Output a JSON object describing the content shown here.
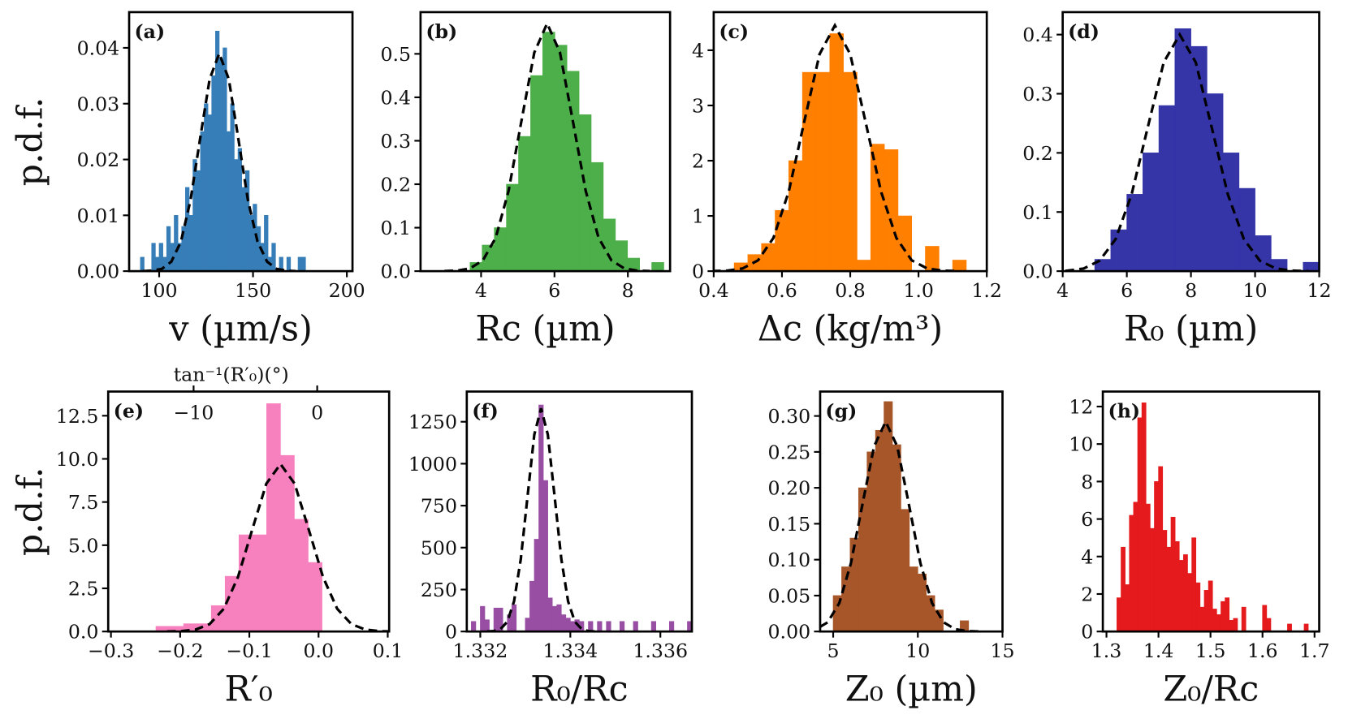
{
  "chart_data": [
    {
      "type": "histogram",
      "panel_label": "(a)",
      "xlabel": "v (µm/s)",
      "ylabel": "p.d.f.",
      "color": "#377eb8",
      "bins": [
        90,
        92,
        94,
        96,
        98,
        100,
        102,
        104,
        106,
        108,
        110,
        112,
        114,
        116,
        118,
        120,
        122,
        124,
        126,
        128,
        130,
        132,
        134,
        136,
        138,
        140,
        142,
        144,
        146,
        148,
        150,
        152,
        154,
        156,
        158,
        160,
        162,
        164,
        166,
        168,
        170,
        172,
        174,
        176,
        178,
        180
      ],
      "values": [
        0.0025,
        0,
        0,
        0.005,
        0.0025,
        0.005,
        0.0025,
        0.008,
        0.005,
        0.01,
        0.005,
        0.008,
        0.015,
        0.01,
        0.02,
        0.018,
        0.025,
        0.03,
        0.028,
        0.035,
        0.043,
        0.038,
        0.04,
        0.025,
        0.03,
        0.02,
        0.022,
        0.015,
        0.018,
        0.01,
        0.012,
        0.008,
        0.005,
        0.01,
        0.0025,
        0.005,
        0,
        0.0025,
        0,
        0.0025,
        0,
        0,
        0.0025,
        0.0025,
        0
      ],
      "fit": {
        "x": [
          91.2,
          96.3,
          101.4,
          106.5,
          111.6,
          116.7,
          121.8,
          126.9,
          132,
          137.1,
          142.2,
          147.3,
          152.4,
          157.5,
          162.6,
          167.7,
          172.8
        ],
        "values": [
          0,
          0.0001,
          0.0004,
          0.0017,
          0.0053,
          0.0127,
          0.0237,
          0.0344,
          0.039,
          0.0344,
          0.0237,
          0.0127,
          0.0053,
          0.0017,
          0.0004,
          0.0001,
          0
        ]
      },
      "xlim": [
        84,
        203
      ],
      "ylim": [
        0,
        0.0464
      ],
      "xticks": [
        100,
        150,
        200
      ],
      "yticks": [
        {
          "value": 0,
          "label": "0.00"
        },
        0.01,
        0.02,
        0.03,
        0.04
      ]
    },
    {
      "type": "histogram",
      "panel_label": "(b)",
      "xlabel": "Rc (µm)",
      "color": "#4daf4a",
      "bins": [
        3.7,
        4.03,
        4.36,
        4.69,
        5.02,
        5.35,
        5.68,
        6.01,
        6.34,
        6.67,
        7.0,
        7.33,
        7.66,
        7.99,
        8.32,
        8.65,
        8.98
      ],
      "values": [
        0.02,
        0.06,
        0.1,
        0.2,
        0.31,
        0.45,
        0.55,
        0.52,
        0.46,
        0.36,
        0.25,
        0.12,
        0.07,
        0.03,
        0,
        0.02
      ],
      "fit": {
        "x": [
          3.0,
          3.35,
          3.7,
          4.05,
          4.4,
          4.75,
          5.1,
          5.45,
          5.8,
          6.15,
          6.5,
          6.85,
          7.2,
          7.55,
          7.9,
          8.25,
          8.6
        ],
        "values": [
          0.0002,
          0.0013,
          0.0063,
          0.025,
          0.0771,
          0.1851,
          0.3457,
          0.503,
          0.57,
          0.503,
          0.3457,
          0.1851,
          0.0771,
          0.025,
          0.0063,
          0.0013,
          0.0002
        ]
      },
      "xlim": [
        2.35,
        9.15
      ],
      "ylim": [
        0,
        0.596
      ],
      "xticks": [
        4,
        6,
        8
      ],
      "yticks": [
        {
          "value": 0,
          "label": "0.0"
        },
        0.1,
        0.2,
        0.3,
        0.4,
        0.5
      ]
    },
    {
      "type": "histogram",
      "panel_label": "(c)",
      "xlabel": "Δc (kg/m³)",
      "color": "#ff7f00",
      "bins": [
        0.46,
        0.5,
        0.54,
        0.58,
        0.62,
        0.66,
        0.7,
        0.74,
        0.78,
        0.82,
        0.86,
        0.9,
        0.94,
        0.98,
        1.02,
        1.06,
        1.1,
        1.14
      ],
      "values": [
        0.15,
        0.3,
        0.5,
        1.1,
        2.0,
        3.6,
        3.6,
        4.3,
        3.6,
        0.2,
        2.3,
        2.2,
        1.0,
        0,
        0.45,
        0,
        0.2
      ],
      "fit": {
        "x": [
          0.395,
          0.44,
          0.485,
          0.53,
          0.575,
          0.62,
          0.665,
          0.71,
          0.755,
          0.8,
          0.845,
          0.89,
          0.935,
          0.98,
          1.025,
          1.07,
          1.115
        ],
        "values": [
          0.0013,
          0.0098,
          0.0494,
          0.1954,
          0.6021,
          1.4449,
          2.6989,
          3.9271,
          4.45,
          3.9271,
          2.6989,
          1.4449,
          0.6021,
          0.1954,
          0.0494,
          0.0098,
          0.0013
        ]
      },
      "xlim": [
        0.4,
        1.2
      ],
      "ylim": [
        0,
        4.69
      ],
      "xticks": [
        0.4,
        0.6,
        0.8,
        {
          "value": 1,
          "label": "1.0"
        },
        1.2
      ],
      "yticks": [
        0,
        1,
        2,
        3,
        4
      ]
    },
    {
      "type": "histogram",
      "panel_label": "(d)",
      "xlabel": "R₀ (µm)",
      "color": "#3535a8",
      "bins": [
        5.0,
        5.5,
        6.0,
        6.5,
        7.0,
        7.5,
        8.0,
        8.5,
        9.0,
        9.5,
        10.0,
        10.5,
        11.0,
        11.5,
        12.0
      ],
      "values": [
        0.02,
        0.07,
        0.13,
        0.2,
        0.28,
        0.41,
        0.38,
        0.3,
        0.2,
        0.14,
        0.06,
        0.02,
        0,
        0.015
      ],
      "fit": {
        "x": [
          3.65,
          4.15,
          4.65,
          5.15,
          5.65,
          6.15,
          6.65,
          7.15,
          7.65,
          8.15,
          8.65,
          9.15,
          9.65,
          10.15,
          10.65,
          11.15,
          11.65
        ],
        "values": [
          0.0001,
          0.0009,
          0.0044,
          0.0176,
          0.0541,
          0.1299,
          0.2426,
          0.353,
          0.4,
          0.353,
          0.2426,
          0.1299,
          0.0541,
          0.0176,
          0.0044,
          0.0009,
          0.0001
        ]
      },
      "xlim": [
        4,
        12
      ],
      "ylim": [
        0,
        0.438
      ],
      "xticks": [
        4,
        6,
        8,
        10,
        12
      ],
      "yticks": [
        {
          "value": 0,
          "label": "0.0"
        },
        0.1,
        0.2,
        0.3,
        0.4
      ]
    },
    {
      "type": "histogram",
      "panel_label": "(e)",
      "xlabel": "R′₀",
      "ylabel": "p.d.f.",
      "color": "#f781bf",
      "bins": [
        -0.235,
        -0.215,
        -0.195,
        -0.175,
        -0.155,
        -0.135,
        -0.115,
        -0.095,
        -0.075,
        -0.055,
        -0.035,
        -0.015,
        0.005
      ],
      "values": [
        0.3,
        0.3,
        0.45,
        0.45,
        1.5,
        3.2,
        5.6,
        5.6,
        13.2,
        10.2,
        6.5,
        4.0
      ],
      "fit": {
        "x": [
          -0.219,
          -0.1985,
          -0.178,
          -0.1575,
          -0.137,
          -0.1165,
          -0.096,
          -0.0755,
          -0.055,
          -0.0345,
          -0.014,
          0.0065,
          0.027,
          0.0475,
          0.068,
          0.0885,
          0.109
        ],
        "values": [
          0.0029,
          0.0213,
          0.1077,
          0.4258,
          1.3124,
          3.1496,
          5.8831,
          8.5603,
          9.7,
          8.5603,
          5.8831,
          3.1496,
          1.3124,
          0.4258,
          0.1077,
          0.0213,
          0.0029
        ]
      },
      "xlim": [
        -0.304,
        0.102
      ],
      "ylim": [
        0,
        13.9
      ],
      "xticks": [
        {
          "value": -0.3,
          "label": "−0.3"
        },
        {
          "value": -0.2,
          "label": "−0.2"
        },
        {
          "value": -0.1,
          "label": "−0.1"
        },
        {
          "value": 0,
          "label": "0.0"
        },
        0.1
      ],
      "yticks": [
        {
          "value": 0,
          "label": "0.0"
        },
        2.5,
        {
          "value": 5,
          "label": "5.0"
        },
        7.5,
        {
          "value": 10,
          "label": "10.0"
        },
        12.5
      ],
      "x2label": "tan⁻¹(R′₀)(°)",
      "x2lim": [
        -16.91,
        5.82
      ],
      "x2ticks": [
        {
          "value": -10,
          "label": "−10"
        },
        0
      ]
    },
    {
      "type": "histogram",
      "panel_label": "(f)",
      "xlabel": "R₀/Rc",
      "color": "#984ea3",
      "bins": [
        1.3318,
        1.3319,
        1.332,
        1.3321,
        1.3322,
        1.3323,
        1.3324,
        1.3325,
        1.3326,
        1.3327,
        1.3328,
        1.3329,
        1.333,
        1.3331,
        1.3332,
        1.3333,
        1.3334,
        1.3335,
        1.3336,
        1.3337,
        1.3338,
        1.3339,
        1.334,
        1.3341,
        1.3342,
        1.3343,
        1.3344,
        1.3345,
        1.3346,
        1.3347,
        1.3348,
        1.3349,
        1.335,
        1.3351,
        1.3352,
        1.3353,
        1.3354,
        1.3355,
        1.3356,
        1.3357,
        1.3358,
        1.3359,
        1.336,
        1.3361,
        1.3362,
        1.3363,
        1.3364,
        1.3365,
        1.3366,
        1.3367
      ],
      "values": [
        60,
        0,
        150,
        70,
        0,
        140,
        140,
        0,
        100,
        160,
        0,
        0,
        80,
        300,
        550,
        1350,
        900,
        200,
        150,
        160,
        100,
        80,
        60,
        70,
        60,
        0,
        60,
        0,
        60,
        0,
        60,
        0,
        0,
        60,
        0,
        0,
        60,
        0,
        0,
        0,
        60,
        0,
        0,
        0,
        60,
        0,
        0,
        0,
        60
      ],
      "fit": {
        "x": [
          1.33215,
          1.3323,
          1.33245,
          1.3326,
          1.33275,
          1.3329,
          1.33305,
          1.3332,
          1.33335,
          1.3335,
          1.33365,
          1.3338,
          1.33395,
          1.3341,
          1.33425,
          1.3344,
          1.33455
        ],
        "values": [
          0.4,
          2.9,
          14.8,
          58.4,
          180,
          431.9,
          806.6,
          1173.7,
          1330,
          1173.7,
          806.6,
          431.9,
          180,
          58.4,
          14.8,
          2.9,
          0.4
        ]
      },
      "xlim": [
        1.3317,
        1.3367
      ],
      "ylim": [
        0,
        1430
      ],
      "xticks": [
        1.332,
        1.334,
        1.336
      ],
      "yticks": [
        0,
        250,
        500,
        750,
        1000,
        1250
      ]
    },
    {
      "type": "histogram",
      "panel_label": "(g)",
      "xlabel": "Z₀ (µm)",
      "color": "#a65628",
      "bins": [
        5,
        5.5,
        6,
        6.5,
        7,
        7.5,
        8,
        8.5,
        9,
        9.5,
        10,
        10.5,
        11,
        11.5,
        12,
        12.5,
        13
      ],
      "values": [
        0.05,
        0.09,
        0.13,
        0.2,
        0.25,
        0.28,
        0.32,
        0.26,
        0.17,
        0.09,
        0.08,
        0.05,
        0.03,
        0,
        0,
        0.015
      ],
      "fit": {
        "x": [
          2.62,
          3.305,
          3.99,
          4.675,
          5.36,
          6.045,
          6.73,
          7.415,
          8.1,
          8.785,
          9.47,
          10.155,
          10.84,
          11.525,
          12.21,
          12.895,
          13.58
        ],
        "values": [
          0.0001,
          0.0006,
          0.0032,
          0.0128,
          0.0395,
          0.0948,
          0.1771,
          0.2577,
          0.292,
          0.2577,
          0.1771,
          0.0948,
          0.0395,
          0.0128,
          0.0032,
          0.0006,
          0.0001
        ]
      },
      "xlim": [
        4.23,
        15
      ],
      "ylim": [
        0,
        0.334
      ],
      "xticks": [
        5,
        10,
        15
      ],
      "yticks": [
        {
          "value": 0,
          "label": "0.00"
        },
        0.05,
        {
          "value": 0.1,
          "label": "0.10"
        },
        0.15,
        {
          "value": 0.2,
          "label": "0.20"
        },
        0.25,
        {
          "value": 0.3,
          "label": "0.30"
        }
      ]
    },
    {
      "type": "histogram",
      "panel_label": "(h)",
      "xlabel": "Z₀/Rc",
      "color": "#e41a1c",
      "bins": [
        1.32,
        1.328,
        1.336,
        1.344,
        1.352,
        1.36,
        1.368,
        1.376,
        1.384,
        1.392,
        1.4,
        1.408,
        1.416,
        1.424,
        1.432,
        1.44,
        1.448,
        1.456,
        1.464,
        1.472,
        1.48,
        1.488,
        1.496,
        1.504,
        1.512,
        1.52,
        1.528,
        1.536,
        1.544,
        1.552,
        1.56,
        1.568,
        1.576,
        1.584,
        1.592,
        1.6,
        1.608,
        1.616,
        1.624,
        1.632,
        1.64,
        1.648,
        1.656,
        1.664,
        1.672,
        1.68,
        1.688
      ],
      "values": [
        1.8,
        4.5,
        2.5,
        6.2,
        6.9,
        11.4,
        12.2,
        6.8,
        5.5,
        8.0,
        8.8,
        5.4,
        4.5,
        6.1,
        4.8,
        3.8,
        4.1,
        3.1,
        5.0,
        2.6,
        1.3,
        2.2,
        2.7,
        1.2,
        0.9,
        1.6,
        1.8,
        0.6,
        0.7,
        0,
        1.3,
        0,
        0,
        0,
        0,
        1.4,
        0.7,
        0,
        0,
        0,
        0,
        0.4,
        0,
        0,
        0,
        0.4
      ],
      "xlim": [
        1.293,
        1.709
      ],
      "ylim": [
        0,
        12.8
      ],
      "xticks": [
        1.3,
        1.4,
        1.5,
        1.6,
        1.7
      ],
      "yticks": [
        0,
        2,
        4,
        6,
        8,
        10,
        12
      ]
    }
  ]
}
